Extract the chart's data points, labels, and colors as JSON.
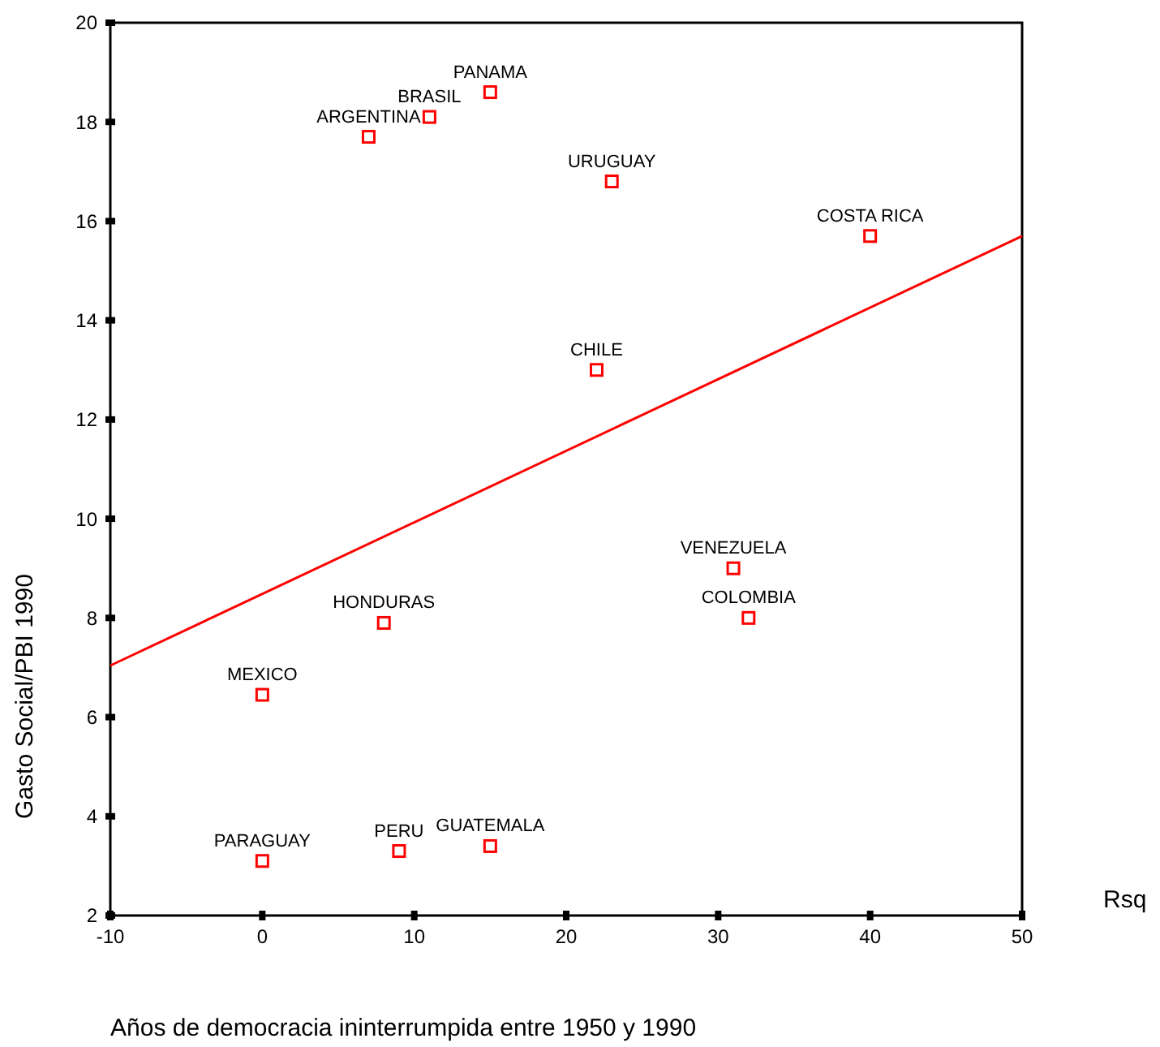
{
  "chart_data": {
    "type": "scatter",
    "xlabel": "Años de democracia ininterrumpida entre 1950 y 1990",
    "ylabel": "Gasto Social/PBI 1990",
    "xlim": [
      -10,
      50
    ],
    "xticks": [
      -10,
      0,
      10,
      20,
      30,
      40,
      50
    ],
    "ylim": [
      2,
      20
    ],
    "yticks": [
      2,
      4,
      6,
      8,
      10,
      12,
      14,
      16,
      18,
      20
    ],
    "grid": false,
    "series": [
      {
        "type": "scatter",
        "color": "#ff0000",
        "marker": "square",
        "x": [
          15,
          11,
          7,
          23,
          40,
          22,
          31,
          32,
          8,
          0,
          0,
          9,
          15
        ],
        "values": [
          18.6,
          18.1,
          17.7,
          16.8,
          15.7,
          13.0,
          9.0,
          8.0,
          7.9,
          6.45,
          3.1,
          3.3,
          3.4
        ]
      },
      {
        "type": "line",
        "color": "#ff0000",
        "marker": "none",
        "line_style": "solid",
        "x": [
          -10,
          50
        ],
        "values": [
          7.04,
          15.7
        ]
      }
    ],
    "annotations": [
      {
        "text": "PANAMA",
        "x": 15,
        "y": 18.6
      },
      {
        "text": "BRASIL",
        "x": 11,
        "y": 18.1
      },
      {
        "text": "ARGENTINA",
        "x": 7,
        "y": 17.7
      },
      {
        "text": "URUGUAY",
        "x": 23,
        "y": 16.8
      },
      {
        "text": "COSTA RICA",
        "x": 40,
        "y": 15.7
      },
      {
        "text": "CHILE",
        "x": 22,
        "y": 13.0
      },
      {
        "text": "VENEZUELA",
        "x": 31,
        "y": 9.0
      },
      {
        "text": "COLOMBIA",
        "x": 32,
        "y": 8.0
      },
      {
        "text": "HONDURAS",
        "x": 8,
        "y": 7.9
      },
      {
        "text": "MEXICO",
        "x": 0,
        "y": 6.45
      },
      {
        "text": "PARAGUAY",
        "x": 0,
        "y": 3.1
      },
      {
        "text": "PERU",
        "x": 9,
        "y": 3.3
      },
      {
        "text": "GUATEMALA",
        "x": 15,
        "y": 3.4
      },
      "Rsq"
    ]
  }
}
